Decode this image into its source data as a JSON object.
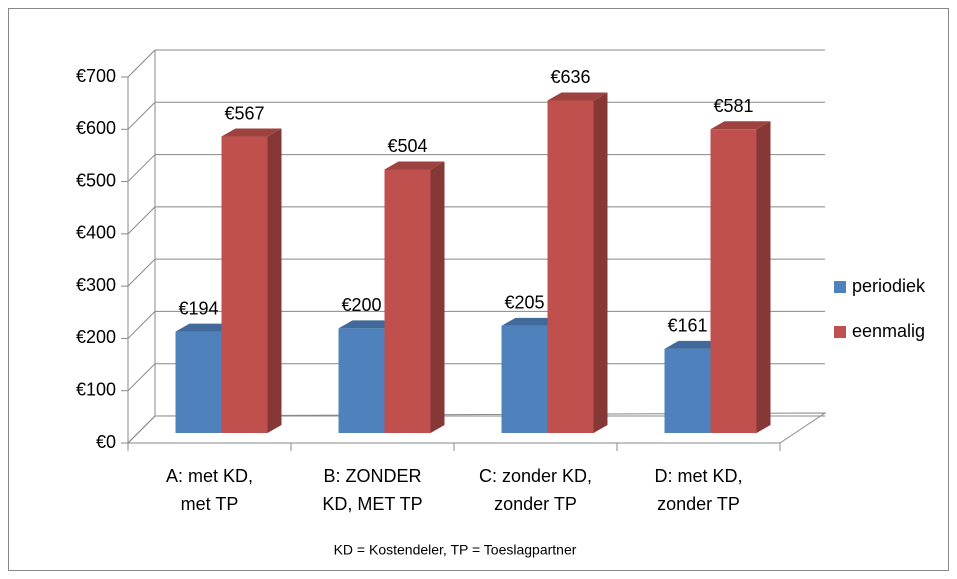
{
  "chart_data": {
    "type": "bar3d",
    "categories": [
      [
        "A: met KD,",
        "met TP"
      ],
      [
        "B: ZONDER",
        "KD, MET TP"
      ],
      [
        "C: zonder KD,",
        "zonder TP"
      ],
      [
        "D: met KD,",
        "zonder TP"
      ]
    ],
    "series": [
      {
        "name": "periodiek",
        "color": "#4f81bd",
        "values": [
          194,
          200,
          205,
          161
        ],
        "value_labels": [
          "€194",
          "€200",
          "€205",
          "€161"
        ]
      },
      {
        "name": "eenmalig",
        "color": "#c0504d",
        "values": [
          567,
          504,
          636,
          581
        ],
        "value_labels": [
          "€567",
          "€504",
          "€636",
          "€581"
        ]
      }
    ],
    "x_label": "KD = Kostendeler, TP = Toeslagpartner",
    "ylim": [
      0,
      700
    ],
    "yticks": [
      {
        "value": 0,
        "label": "€0"
      },
      {
        "value": 100,
        "label": "€100"
      },
      {
        "value": 200,
        "label": "€200"
      },
      {
        "value": 300,
        "label": "€300"
      },
      {
        "value": 400,
        "label": "€400"
      },
      {
        "value": 500,
        "label": "€500"
      },
      {
        "value": 600,
        "label": "€600"
      },
      {
        "value": 700,
        "label": "€700"
      }
    ],
    "grid": true,
    "legend": "right"
  }
}
